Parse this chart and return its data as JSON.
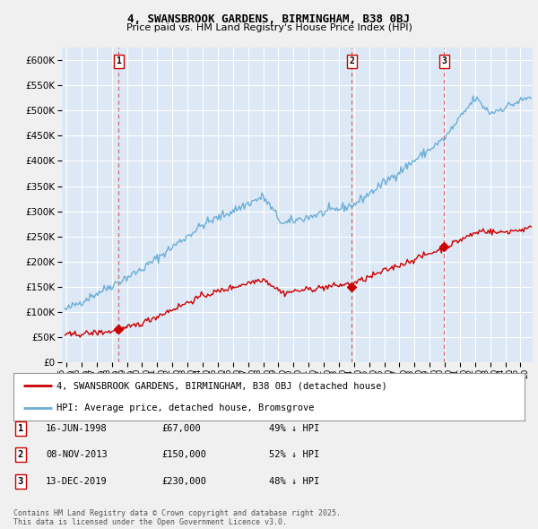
{
  "title": "4, SWANSBROOK GARDENS, BIRMINGHAM, B38 0BJ",
  "subtitle": "Price paid vs. HM Land Registry's House Price Index (HPI)",
  "ylim": [
    0,
    625000
  ],
  "xlim_start": 1994.7,
  "xlim_end": 2025.8,
  "background_color": "#f0f0f0",
  "plot_bg_color": "#dce8f5",
  "grid_color": "#ffffff",
  "hpi_color": "#6baed6",
  "price_color": "#cc0000",
  "sale_marker_color": "#cc0000",
  "transactions": [
    {
      "date_x": 1998.45,
      "price": 67000,
      "label": "1"
    },
    {
      "date_x": 2013.85,
      "price": 150000,
      "label": "2"
    },
    {
      "date_x": 2019.95,
      "price": 230000,
      "label": "3"
    }
  ],
  "legend_property_label": "4, SWANSBROOK GARDENS, BIRMINGHAM, B38 0BJ (detached house)",
  "legend_hpi_label": "HPI: Average price, detached house, Bromsgrove",
  "table_rows": [
    {
      "num": "1",
      "date": "16-JUN-1998",
      "price": "£67,000",
      "pct": "49% ↓ HPI"
    },
    {
      "num": "2",
      "date": "08-NOV-2013",
      "price": "£150,000",
      "pct": "52% ↓ HPI"
    },
    {
      "num": "3",
      "date": "13-DEC-2019",
      "price": "£230,000",
      "pct": "48% ↓ HPI"
    }
  ],
  "footer": "Contains HM Land Registry data © Crown copyright and database right 2025.\nThis data is licensed under the Open Government Licence v3.0."
}
